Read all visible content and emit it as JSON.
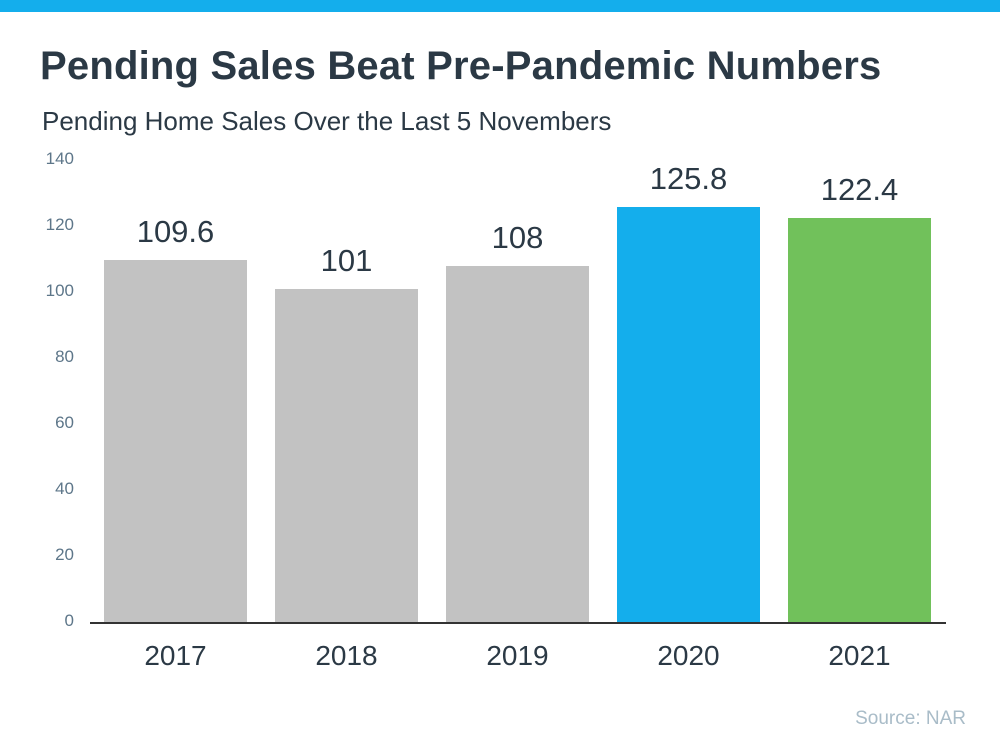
{
  "page": {
    "title": "Pending Sales Beat Pre-Pandemic Numbers",
    "subtitle": "Pending Home Sales Over the Last 5 Novembers",
    "source": "Source: NAR"
  },
  "colors": {
    "accent_strip": "#14AEEC",
    "title_text": "#2B3945",
    "subtitle_text": "#2B3945",
    "bar_default": "#C2C2C2",
    "bar_2020": "#14AEEC",
    "bar_2021": "#71C15B",
    "value_label_text": "#2B3945",
    "x_label_text": "#2B3945",
    "y_tick_text": "#5D7689",
    "axis_line": "#333333",
    "source_text": "#A9BCC8"
  },
  "chart_data": {
    "type": "bar",
    "title": "Pending Sales Beat Pre-Pandemic Numbers",
    "subtitle": "Pending Home Sales Over the Last 5 Novembers",
    "categories": [
      "2017",
      "2018",
      "2019",
      "2020",
      "2021"
    ],
    "values": [
      109.6,
      101,
      108,
      125.8,
      122.4
    ],
    "data_labels": [
      "109.6",
      "101",
      "108",
      "125.8",
      "122.4"
    ],
    "bar_colors": [
      "#C2C2C2",
      "#C2C2C2",
      "#C2C2C2",
      "#14AEEC",
      "#71C15B"
    ],
    "xlabel": "",
    "ylabel": "",
    "ylim": [
      0,
      140
    ],
    "yticks": [
      0,
      20,
      40,
      60,
      80,
      100,
      120,
      140
    ],
    "grid": false,
    "legend": false,
    "source": "Source: NAR"
  }
}
